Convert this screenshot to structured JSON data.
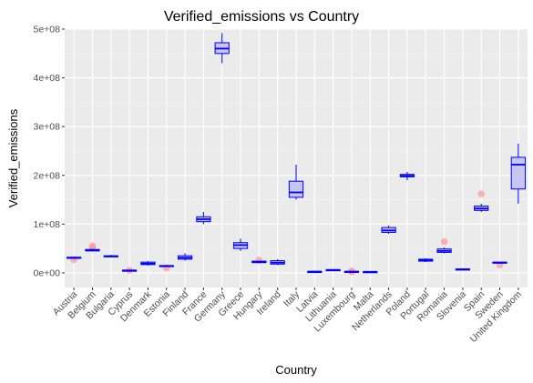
{
  "chart_data": {
    "type": "boxplot",
    "title": "Verified_emissions  vs Country",
    "xlabel": "Country",
    "ylabel": "Verified_emissions",
    "ylim": [
      -30000000,
      500000000
    ],
    "y_ticks": [
      0,
      100000000,
      200000000,
      300000000,
      400000000,
      500000000
    ],
    "y_tick_labels": [
      "0e+00",
      "1e+08",
      "2e+08",
      "3e+08",
      "4e+08",
      "5e+08"
    ],
    "grid": true,
    "categories": [
      "Austria",
      "Belgium",
      "Bulgaria",
      "Cyprus",
      "Denmark",
      "Estonia",
      "Finland",
      "France",
      "Germany",
      "Greece",
      "Hungary",
      "Ireland",
      "Italy",
      "Latvia",
      "Lithuania",
      "Luxembourg",
      "Malta",
      "Netherlands",
      "Poland",
      "Portugal",
      "Romania",
      "Slovenia",
      "Spain",
      "Sweden",
      "United Kingdom"
    ],
    "boxes": [
      {
        "min": 29000000,
        "q1": 30000000,
        "median": 31000000,
        "q3": 32000000,
        "max": 33000000,
        "outliers": [
          27000000
        ]
      },
      {
        "min": 44000000,
        "q1": 45000000,
        "median": 46000000,
        "q3": 48000000,
        "max": 49000000,
        "outliers": [
          52000000,
          55000000
        ]
      },
      {
        "min": 32000000,
        "q1": 33000000,
        "median": 34000000,
        "q3": 35000000,
        "max": 37000000,
        "outliers": []
      },
      {
        "min": 4000000,
        "q1": 4500000,
        "median": 5000000,
        "q3": 5500000,
        "max": 6000000,
        "outliers": [
          5000000
        ]
      },
      {
        "min": 15000000,
        "q1": 17000000,
        "median": 19000000,
        "q3": 22000000,
        "max": 24000000,
        "outliers": []
      },
      {
        "min": 12000000,
        "q1": 13000000,
        "median": 14000000,
        "q3": 15000000,
        "max": 16000000,
        "outliers": [
          10000000
        ]
      },
      {
        "min": 25000000,
        "q1": 28000000,
        "median": 31000000,
        "q3": 35000000,
        "max": 40000000,
        "outliers": []
      },
      {
        "min": 100000000,
        "q1": 105000000,
        "median": 110000000,
        "q3": 115000000,
        "max": 125000000,
        "outliers": []
      },
      {
        "min": 430000000,
        "q1": 450000000,
        "median": 460000000,
        "q3": 472000000,
        "max": 492000000,
        "outliers": []
      },
      {
        "min": 45000000,
        "q1": 50000000,
        "median": 57000000,
        "q3": 62000000,
        "max": 70000000,
        "outliers": []
      },
      {
        "min": 20000000,
        "q1": 21000000,
        "median": 22000000,
        "q3": 24000000,
        "max": 25000000,
        "outliers": [
          26000000
        ]
      },
      {
        "min": 16000000,
        "q1": 18000000,
        "median": 21000000,
        "q3": 25000000,
        "max": 28000000,
        "outliers": []
      },
      {
        "min": 150000000,
        "q1": 155000000,
        "median": 165000000,
        "q3": 188000000,
        "max": 222000000,
        "outliers": []
      },
      {
        "min": 2000000,
        "q1": 2300000,
        "median": 2600000,
        "q3": 2900000,
        "max": 3200000,
        "outliers": []
      },
      {
        "min": 5000000,
        "q1": 5500000,
        "median": 6000000,
        "q3": 6500000,
        "max": 7000000,
        "outliers": []
      },
      {
        "min": 1500000,
        "q1": 2000000,
        "median": 2500000,
        "q3": 3000000,
        "max": 3500000,
        "outliers": [
          4000000,
          2000000
        ]
      },
      {
        "min": 1500000,
        "q1": 2000000,
        "median": 2200000,
        "q3": 2500000,
        "max": 3000000,
        "outliers": []
      },
      {
        "min": 80000000,
        "q1": 83000000,
        "median": 87000000,
        "q3": 93000000,
        "max": 97000000,
        "outliers": []
      },
      {
        "min": 190000000,
        "q1": 197000000,
        "median": 199000000,
        "q3": 202000000,
        "max": 207000000,
        "outliers": []
      },
      {
        "min": 22000000,
        "q1": 24000000,
        "median": 26000000,
        "q3": 28000000,
        "max": 30000000,
        "outliers": []
      },
      {
        "min": 40000000,
        "q1": 42000000,
        "median": 45000000,
        "q3": 49000000,
        "max": 52000000,
        "outliers": [
          64000000
        ]
      },
      {
        "min": 5000000,
        "q1": 6000000,
        "median": 7000000,
        "q3": 8000000,
        "max": 9000000,
        "outliers": []
      },
      {
        "min": 125000000,
        "q1": 128000000,
        "median": 132000000,
        "q3": 137000000,
        "max": 142000000,
        "outliers": [
          162000000
        ]
      },
      {
        "min": 19000000,
        "q1": 20000000,
        "median": 21000000,
        "q3": 22000000,
        "max": 23000000,
        "outliers": [
          16000000
        ]
      },
      {
        "min": 142000000,
        "q1": 172000000,
        "median": 222000000,
        "q3": 237000000,
        "max": 265000000,
        "outliers": []
      }
    ],
    "colors": {
      "panel": "#ebebeb",
      "grid_major": "#ffffff",
      "grid_minor": "#f5f5f5",
      "box_stroke": "#0000ff",
      "box_fill": "#c6c6f0",
      "outlier": "#ff9a9a",
      "tick": "#333333"
    }
  }
}
